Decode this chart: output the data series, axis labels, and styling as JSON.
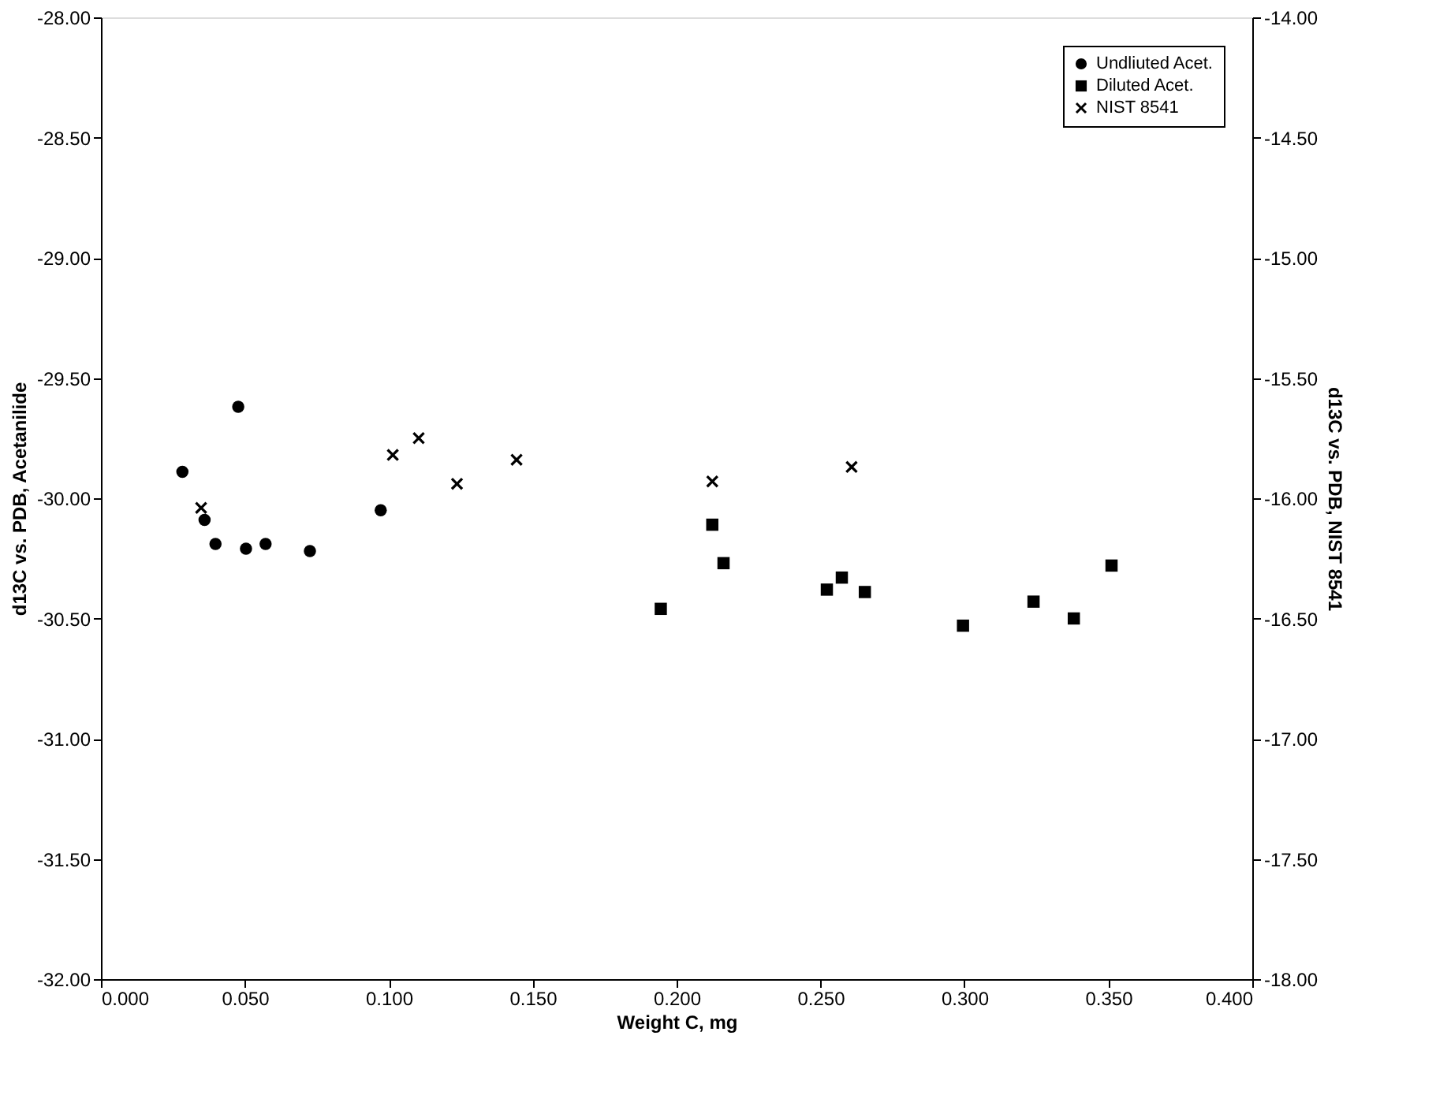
{
  "chart_data": {
    "type": "scatter",
    "xlabel": "Weight C, mg",
    "ylabel": "d13C vs. PDB, Acetanilide",
    "y2label": "d13C vs. PDB, NIST 8541",
    "series": [
      {
        "name": "Undliuted Acet.",
        "color": "#000000",
        "marker": "circle",
        "axis": "y",
        "x": [
          0.0283,
          0.0477,
          0.036,
          0.0398,
          0.0504,
          0.0572,
          0.0726,
          0.0972
        ],
        "values": [
          -29.89,
          -29.62,
          -30.09,
          -30.19,
          -30.21,
          -30.19,
          -30.22,
          -30.05
        ]
      },
      {
        "name": "Diluted Acet.",
        "color": "#000000",
        "marker": "square",
        "axis": "y",
        "x": [
          0.1945,
          0.2124,
          0.2163,
          0.2522,
          0.2574,
          0.2654,
          0.2995,
          0.324,
          0.338,
          0.3511
        ],
        "values": [
          -30.46,
          -30.11,
          -30.27,
          -30.38,
          -30.33,
          -30.39,
          -30.53,
          -30.43,
          -30.5,
          -30.28
        ]
      },
      {
        "name": "NIST 8541",
        "color": "#000000",
        "marker": "cross",
        "axis": "y2",
        "x": [
          0.0348,
          0.1014,
          0.1104,
          0.1237,
          0.1444,
          0.2124,
          0.2608
        ],
        "values": [
          -16.04,
          -15.82,
          -15.75,
          -15.94,
          -15.84,
          -15.93,
          -15.87
        ]
      }
    ],
    "xlim": [
      0,
      0.4
    ],
    "xticks": [
      {
        "value": 0,
        "label": "0.000"
      },
      {
        "value": 0.05,
        "label": "0.050"
      },
      {
        "value": 0.1,
        "label": "0.100"
      },
      {
        "value": 0.15,
        "label": "0.150"
      },
      {
        "value": 0.2,
        "label": "0.200"
      },
      {
        "value": 0.25,
        "label": "0.250"
      },
      {
        "value": 0.3,
        "label": "0.300"
      },
      {
        "value": 0.35,
        "label": "0.350"
      },
      {
        "value": 0.4,
        "label": "0.400"
      }
    ],
    "ylim": [
      -32,
      -28
    ],
    "yticks": [
      {
        "value": -32,
        "label": "-32.00"
      },
      {
        "value": -31.5,
        "label": "-31.50"
      },
      {
        "value": -31,
        "label": "-31.00"
      },
      {
        "value": -30.5,
        "label": "-30.50"
      },
      {
        "value": -30,
        "label": "-30.00"
      },
      {
        "value": -29.5,
        "label": "-29.50"
      },
      {
        "value": -29,
        "label": "-29.00"
      },
      {
        "value": -28.5,
        "label": "-28.50"
      },
      {
        "value": -28,
        "label": "-28.00"
      }
    ],
    "y2lim": [
      -18,
      -14
    ],
    "y2ticks": [
      {
        "value": -18,
        "label": "-18.00"
      },
      {
        "value": -17.5,
        "label": "-17.50"
      },
      {
        "value": -17,
        "label": "-17.00"
      },
      {
        "value": -16.5,
        "label": "-16.50"
      },
      {
        "value": -16,
        "label": "-16.00"
      },
      {
        "value": -15.5,
        "label": "-15.50"
      },
      {
        "value": -15,
        "label": "-15.00"
      },
      {
        "value": -14.5,
        "label": "-14.50"
      },
      {
        "value": -14,
        "label": "-14.00"
      }
    ],
    "legend": "top right",
    "grid": false
  }
}
